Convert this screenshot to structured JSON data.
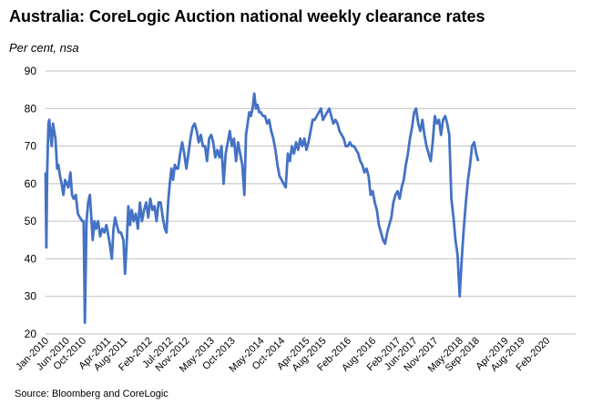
{
  "title": "Australia: CoreLogic Auction national weekly clearance rates",
  "subtitle": "Per cent, nsa",
  "source": "Source: Bloomberg and CoreLogic",
  "chart_data": {
    "type": "line",
    "title": "Australia: CoreLogic Auction national weekly clearance rates",
    "ylabel": "Per cent, nsa",
    "xlabel": "",
    "ylim": [
      20,
      90
    ],
    "yticks": [
      20,
      30,
      40,
      50,
      60,
      70,
      80,
      90
    ],
    "x_start_month_index": 0,
    "x_end_month_index": 128,
    "xticks": [
      {
        "label": "Jan-2010",
        "m": 0
      },
      {
        "label": "Jun-2010",
        "m": 5
      },
      {
        "label": "Oct-2010",
        "m": 9
      },
      {
        "label": "Apr-2011",
        "m": 15
      },
      {
        "label": "Aug-2011",
        "m": 19
      },
      {
        "label": "Feb-2012",
        "m": 25
      },
      {
        "label": "Jul-2012",
        "m": 30
      },
      {
        "label": "Nov-2012",
        "m": 34
      },
      {
        "label": "May-2013",
        "m": 40
      },
      {
        "label": "Oct-2013",
        "m": 45
      },
      {
        "label": "May-2014",
        "m": 52
      },
      {
        "label": "Oct-2014",
        "m": 57
      },
      {
        "label": "Apr-2015",
        "m": 63
      },
      {
        "label": "Aug-2015",
        "m": 67
      },
      {
        "label": "Feb-2016",
        "m": 73
      },
      {
        "label": "Aug-2016",
        "m": 79
      },
      {
        "label": "Feb-2017",
        "m": 85
      },
      {
        "label": "Jun-2017",
        "m": 89
      },
      {
        "label": "Nov-2017",
        "m": 94
      },
      {
        "label": "May-2018",
        "m": 100
      },
      {
        "label": "Sep-2018",
        "m": 104
      },
      {
        "label": "Apr-2019",
        "m": 111
      },
      {
        "label": "Aug-2019",
        "m": 115
      },
      {
        "label": "Feb-2020",
        "m": 121
      }
    ],
    "grid": true,
    "series": [
      {
        "name": "Clearance rate",
        "color": "#4472C4",
        "points": [
          [
            0.0,
            63
          ],
          [
            0.2,
            43
          ],
          [
            0.4,
            63
          ],
          [
            0.7,
            76
          ],
          [
            0.9,
            77
          ],
          [
            1.2,
            73
          ],
          [
            1.5,
            70
          ],
          [
            1.8,
            76
          ],
          [
            2.1,
            74
          ],
          [
            2.4,
            72
          ],
          [
            2.8,
            64
          ],
          [
            3.1,
            65
          ],
          [
            3.5,
            62
          ],
          [
            3.9,
            60
          ],
          [
            4.3,
            57
          ],
          [
            4.7,
            61
          ],
          [
            5.1,
            60
          ],
          [
            5.5,
            59
          ],
          [
            6.0,
            63
          ],
          [
            6.4,
            57
          ],
          [
            6.8,
            56
          ],
          [
            7.3,
            57
          ],
          [
            7.8,
            52
          ],
          [
            8.3,
            51
          ],
          [
            8.9,
            50
          ],
          [
            9.2,
            50
          ],
          [
            9.5,
            23
          ],
          [
            9.9,
            50
          ],
          [
            10.3,
            55
          ],
          [
            10.7,
            57
          ],
          [
            11.0,
            52
          ],
          [
            11.4,
            45
          ],
          [
            11.8,
            50
          ],
          [
            12.2,
            48
          ],
          [
            12.7,
            50
          ],
          [
            13.2,
            46
          ],
          [
            13.7,
            48
          ],
          [
            14.2,
            47
          ],
          [
            14.7,
            49
          ],
          [
            15.2,
            46
          ],
          [
            15.5,
            44
          ],
          [
            16.0,
            40
          ],
          [
            16.4,
            48
          ],
          [
            16.8,
            51
          ],
          [
            17.2,
            49
          ],
          [
            17.7,
            47
          ],
          [
            18.2,
            47
          ],
          [
            18.8,
            45
          ],
          [
            19.2,
            36
          ],
          [
            19.6,
            44
          ],
          [
            20.0,
            54
          ],
          [
            20.4,
            49
          ],
          [
            20.8,
            53
          ],
          [
            21.3,
            50
          ],
          [
            21.8,
            52
          ],
          [
            22.3,
            48
          ],
          [
            22.8,
            55
          ],
          [
            23.3,
            50
          ],
          [
            23.8,
            53
          ],
          [
            24.3,
            55
          ],
          [
            24.8,
            51
          ],
          [
            25.3,
            56
          ],
          [
            25.8,
            53
          ],
          [
            26.3,
            54
          ],
          [
            26.8,
            50
          ],
          [
            27.3,
            55
          ],
          [
            27.8,
            55
          ],
          [
            28.3,
            51
          ],
          [
            28.8,
            48
          ],
          [
            29.2,
            47
          ],
          [
            29.6,
            55
          ],
          [
            30.0,
            60
          ],
          [
            30.4,
            64
          ],
          [
            30.8,
            61
          ],
          [
            31.2,
            65
          ],
          [
            31.6,
            64
          ],
          [
            32.0,
            64
          ],
          [
            32.5,
            68
          ],
          [
            33.0,
            71
          ],
          [
            33.5,
            68
          ],
          [
            34.0,
            64
          ],
          [
            34.5,
            68
          ],
          [
            35.0,
            72
          ],
          [
            35.5,
            75
          ],
          [
            36.0,
            76
          ],
          [
            36.5,
            74
          ],
          [
            37.0,
            71
          ],
          [
            37.5,
            73
          ],
          [
            38.0,
            70
          ],
          [
            38.5,
            70
          ],
          [
            39.0,
            66
          ],
          [
            39.5,
            72
          ],
          [
            40.0,
            73
          ],
          [
            40.5,
            71
          ],
          [
            41.0,
            67
          ],
          [
            41.5,
            69
          ],
          [
            42.0,
            67
          ],
          [
            42.5,
            70
          ],
          [
            43.0,
            60
          ],
          [
            43.5,
            68
          ],
          [
            44.0,
            71
          ],
          [
            44.5,
            74
          ],
          [
            45.0,
            70
          ],
          [
            45.5,
            72
          ],
          [
            46.0,
            66
          ],
          [
            46.5,
            71
          ],
          [
            47.0,
            68
          ],
          [
            47.5,
            65
          ],
          [
            48.0,
            57
          ],
          [
            48.4,
            73
          ],
          [
            48.8,
            76
          ],
          [
            49.2,
            79
          ],
          [
            49.6,
            78
          ],
          [
            50.0,
            80
          ],
          [
            50.4,
            84
          ],
          [
            50.8,
            80
          ],
          [
            51.2,
            81
          ],
          [
            51.6,
            79
          ],
          [
            52.0,
            79
          ],
          [
            52.5,
            78
          ],
          [
            53.0,
            78
          ],
          [
            53.5,
            76
          ],
          [
            54.0,
            77
          ],
          [
            54.5,
            74
          ],
          [
            55.0,
            72
          ],
          [
            55.5,
            69
          ],
          [
            56.0,
            65
          ],
          [
            56.5,
            62
          ],
          [
            57.0,
            61
          ],
          [
            57.5,
            60
          ],
          [
            58.0,
            59
          ],
          [
            58.5,
            68
          ],
          [
            59.0,
            66
          ],
          [
            59.5,
            70
          ],
          [
            60.0,
            68
          ],
          [
            60.5,
            71
          ],
          [
            61.0,
            69
          ],
          [
            61.5,
            72
          ],
          [
            62.0,
            70
          ],
          [
            62.5,
            72
          ],
          [
            63.0,
            69
          ],
          [
            63.5,
            71
          ],
          [
            64.0,
            74
          ],
          [
            64.5,
            77
          ],
          [
            65.0,
            77
          ],
          [
            65.5,
            78
          ],
          [
            66.0,
            79
          ],
          [
            66.5,
            80
          ],
          [
            67.0,
            77
          ],
          [
            67.5,
            78
          ],
          [
            68.0,
            79
          ],
          [
            68.5,
            80
          ],
          [
            69.0,
            78
          ],
          [
            69.5,
            76
          ],
          [
            70.0,
            77
          ],
          [
            70.5,
            76
          ],
          [
            71.0,
            74
          ],
          [
            71.5,
            73
          ],
          [
            72.0,
            72
          ],
          [
            72.5,
            70
          ],
          [
            73.0,
            70
          ],
          [
            73.5,
            71
          ],
          [
            74.0,
            70
          ],
          [
            74.5,
            70
          ],
          [
            75.0,
            69
          ],
          [
            75.5,
            68
          ],
          [
            76.0,
            66
          ],
          [
            76.5,
            65
          ],
          [
            77.0,
            63
          ],
          [
            77.5,
            64
          ],
          [
            78.0,
            62
          ],
          [
            78.5,
            57
          ],
          [
            79.0,
            58
          ],
          [
            79.5,
            55
          ],
          [
            80.0,
            53
          ],
          [
            80.5,
            49
          ],
          [
            81.0,
            47
          ],
          [
            81.5,
            45
          ],
          [
            82.0,
            44
          ],
          [
            82.5,
            47
          ],
          [
            83.0,
            49
          ],
          [
            83.5,
            51
          ],
          [
            84.0,
            55
          ],
          [
            84.5,
            57
          ],
          [
            85.0,
            58
          ],
          [
            85.5,
            56
          ],
          [
            86.0,
            59
          ],
          [
            86.5,
            61
          ],
          [
            87.0,
            65
          ],
          [
            87.5,
            68
          ],
          [
            88.0,
            72
          ],
          [
            88.5,
            75
          ],
          [
            89.0,
            79
          ],
          [
            89.5,
            80
          ],
          [
            90.0,
            76
          ],
          [
            90.5,
            74
          ],
          [
            91.0,
            77
          ],
          [
            91.5,
            73
          ],
          [
            92.0,
            70
          ],
          [
            92.5,
            68
          ],
          [
            93.0,
            66
          ],
          [
            93.5,
            71
          ],
          [
            94.0,
            78
          ],
          [
            94.5,
            76
          ],
          [
            95.0,
            77
          ],
          [
            95.5,
            73
          ],
          [
            96.0,
            77
          ],
          [
            96.5,
            78
          ],
          [
            97.0,
            76
          ],
          [
            97.5,
            73
          ],
          [
            98.0,
            56
          ],
          [
            98.5,
            51
          ],
          [
            99.0,
            45
          ],
          [
            99.5,
            41
          ],
          [
            100.0,
            30
          ],
          [
            100.5,
            40
          ],
          [
            101.0,
            48
          ],
          [
            101.5,
            55
          ],
          [
            102.0,
            61
          ],
          [
            102.5,
            65
          ],
          [
            103.0,
            70
          ],
          [
            103.5,
            71
          ],
          [
            104.0,
            68
          ],
          [
            104.5,
            66
          ]
        ]
      }
    ]
  }
}
